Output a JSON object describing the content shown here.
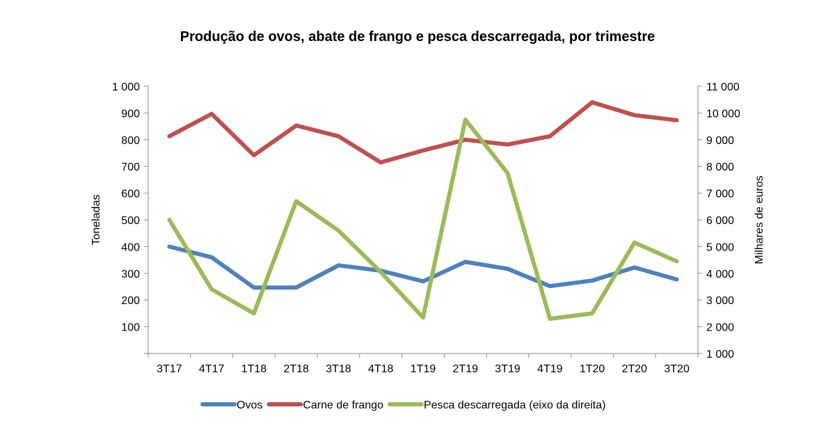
{
  "chart_data": {
    "type": "line",
    "title": "Produção de ovos, abate de frango e pesca descarregada, por trimestre",
    "categories": [
      "3T17",
      "4T17",
      "1T18",
      "2T18",
      "3T18",
      "4T18",
      "1T19",
      "2T19",
      "3T19",
      "4T19",
      "1T20",
      "2T20",
      "3T20"
    ],
    "y_left": {
      "label": "Toneladas",
      "range": [
        0,
        1000
      ],
      "ticks": [
        100,
        200,
        300,
        400,
        500,
        600,
        700,
        800,
        900,
        1000
      ],
      "tick_labels": [
        "100",
        "200",
        "300",
        "400",
        "500",
        "600",
        "700",
        "800",
        "900",
        "1 000"
      ]
    },
    "y_right": {
      "label": "Milhares de euros",
      "range": [
        1000,
        11000
      ],
      "ticks": [
        1000,
        2000,
        3000,
        4000,
        5000,
        6000,
        7000,
        8000,
        9000,
        10000,
        11000
      ],
      "tick_labels": [
        "1 000",
        "2 000",
        "3 000",
        "4 000",
        "5 000",
        "6 000",
        "7 000",
        "8 000",
        "9 000",
        "10 000",
        "11 000"
      ]
    },
    "series": [
      {
        "name": "Ovos",
        "axis": "left",
        "color": "#4F81BD",
        "values": [
          400,
          360,
          247,
          247,
          330,
          310,
          270,
          343,
          317,
          252,
          273,
          322,
          277
        ]
      },
      {
        "name": "Carne de frango",
        "axis": "left",
        "color": "#C0504D",
        "values": [
          813,
          897,
          742,
          853,
          813,
          715,
          760,
          800,
          782,
          813,
          940,
          892,
          873
        ]
      },
      {
        "name": "Pesca descarregada (eixo da direita)",
        "axis": "right",
        "color": "#9BBB59",
        "values": [
          6000,
          3400,
          2500,
          6700,
          5600,
          4050,
          2350,
          9750,
          7750,
          2300,
          2500,
          5150,
          4450
        ]
      }
    ],
    "grid": false,
    "legend": "bottom"
  }
}
